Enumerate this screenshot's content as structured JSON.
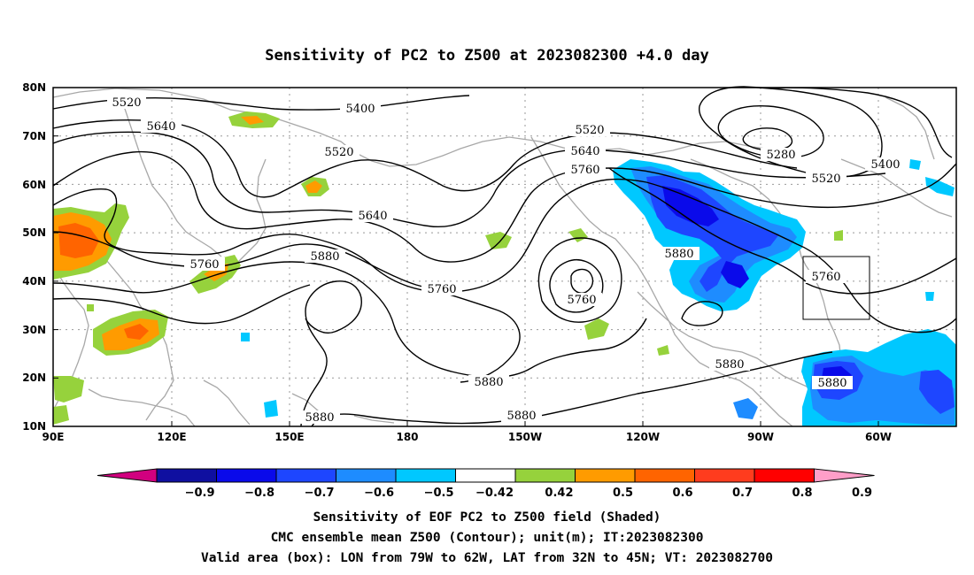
{
  "title": "Sensitivity of PC2 to Z500 at 2023082300 +4.0 day",
  "lat_ticks": [
    "80N",
    "70N",
    "60N",
    "50N",
    "40N",
    "30N",
    "20N",
    "10N"
  ],
  "lon_ticks": [
    "90E",
    "120E",
    "150E",
    "180",
    "150W",
    "120W",
    "90W",
    "60W"
  ],
  "contour_labels": [
    "5520",
    "5400",
    "5640",
    "5520",
    "5520",
    "5640",
    "5760",
    "5280",
    "5400",
    "5520",
    "5640",
    "5760",
    "5880",
    "5880",
    "5760",
    "5760",
    "5760",
    "5880",
    "5880",
    "5880",
    "5880",
    "5880"
  ],
  "colorbar": {
    "labels": [
      "-0.9",
      "-0.8",
      "-0.7",
      "-0.6",
      "-0.5",
      "-0.42",
      "0.42",
      "0.5",
      "0.6",
      "0.7",
      "0.8",
      "0.9"
    ],
    "colors": [
      "#d1007f",
      "#0f0fa0",
      "#0a0aea",
      "#1e46ff",
      "#1e8cff",
      "#00c8ff",
      "#ffffff",
      "#96d23c",
      "#ff9b00",
      "#ff6400",
      "#ff3c1e",
      "#ff0000",
      "#ff9ec8"
    ]
  },
  "captions": [
    "Sensitivity of EOF PC2 to Z500 field (Shaded)",
    "CMC ensemble mean Z500 (Contour); unit(m); IT:2023082300",
    "Valid area (box): LON from 79W to 62W, LAT from 32N to 45N; VT: 2023082700"
  ],
  "valid_box": {
    "lon_min": "79W",
    "lon_max": "62W",
    "lat_min": "32N",
    "lat_max": "45N"
  }
}
